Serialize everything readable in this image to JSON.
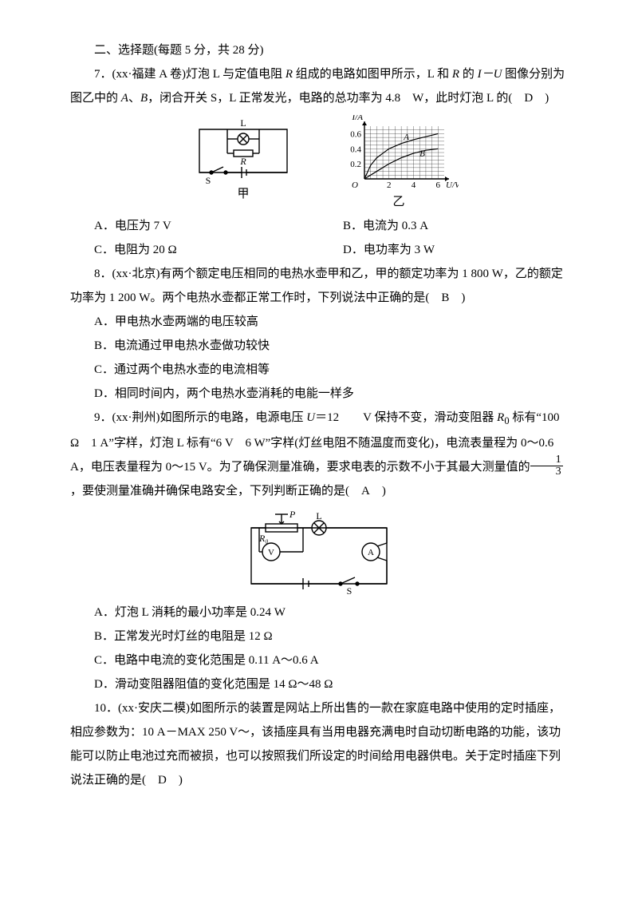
{
  "section_header": "二、选择题(每题 5 分，共 28 分)",
  "q7": {
    "stem_pre": "7．(xx·福建 A 卷)灯泡 L 与定值电阻 ",
    "R": "R",
    "stem_mid1": " 组成的电路如图甲所示，L 和 ",
    "stem_mid2": " 的 ",
    "IU": "I－U",
    "stem_mid3": " 图像分别为图乙中的 ",
    "A": "A",
    "sep": "、",
    "B": "B",
    "stem_tail": "，闭合开关 S，L 正常发光，电路的总功率为 4.8　W，此时灯泡 L 的(　",
    "answer": "D",
    "stem_close": "　)",
    "options": {
      "A": "A．电压为 7 V",
      "B": "B．电流为 0.3 A",
      "C": "C．电阻为 20 Ω",
      "D": "D．电功率为 3 W"
    },
    "circuit_labels": {
      "L": "L",
      "R": "R",
      "S": "S",
      "cap": "甲"
    },
    "chart": {
      "xlabel": "U/V",
      "ylabel": "I/A",
      "xticks": [
        "2",
        "4",
        "6"
      ],
      "yticks": [
        "0.2",
        "0.4",
        "0.6"
      ],
      "curveA_label": "A",
      "curveB_label": "B",
      "cap": "乙",
      "curveA": [
        [
          0,
          0
        ],
        [
          0.5,
          0.18
        ],
        [
          1,
          0.28
        ],
        [
          1.5,
          0.34
        ],
        [
          2,
          0.4
        ],
        [
          3,
          0.47
        ],
        [
          4,
          0.52
        ],
        [
          5,
          0.56
        ],
        [
          6,
          0.6
        ]
      ],
      "curveB": [
        [
          0,
          0
        ],
        [
          1,
          0.1
        ],
        [
          2,
          0.2
        ],
        [
          3,
          0.28
        ],
        [
          4,
          0.34
        ],
        [
          5,
          0.38
        ],
        [
          6,
          0.4
        ]
      ],
      "xlim": [
        0,
        6.5
      ],
      "ylim": [
        0,
        0.7
      ],
      "grid_color": "#000000",
      "stroke_width": 1.2
    }
  },
  "q8": {
    "stem": "8．(xx·北京)有两个额定电压相同的电热水壶甲和乙，甲的额定功率为 1 800 W，乙的额定功率为 1 200 W。两个电热水壶都正常工作时，下列说法中正确的是(　",
    "answer": "B",
    "stem_close": "　)",
    "options": {
      "A": "A．甲电热水壶两端的电压较高",
      "B": "B．电流通过甲电热水壶做功较快",
      "C": "C．通过两个电热水壶的电流相等",
      "D": "D．相同时间内，两个电热水壶消耗的电能一样多"
    }
  },
  "q9": {
    "stem_1": "9．(xx·荆州)如图所示的电路，电源电压 ",
    "U": "U",
    "eq12": "＝12　　V 保持不变，滑动变阻器 ",
    "R0": "R",
    "R0sub": "0",
    "stem_2": " 标有“100 Ω　1 A”字样，灯泡 L 标有“6 V　6 W”字样(灯丝电阻不随温度而变化)，电流表量程为 0～0.6 A，电压表量程为 0～15 V。为了确保测量准确，要求电表的示数不小于其最大测量值的",
    "frac_num": "1",
    "frac_den": "3",
    "stem_3": "，要使测量准确并确保电路安全，下列判断正确的是(　",
    "answer": "A",
    "stem_close": "　)",
    "options": {
      "A": "A．灯泡 L 消耗的最小功率是 0.24 W",
      "B": "B．正常发光时灯丝的电阻是 12 Ω",
      "C": "C．电路中电流的变化范围是 0.11 A～0.6 A",
      "D": "D．滑动变阻器阻值的变化范围是 14 Ω～48 Ω"
    },
    "circuit_labels": {
      "P": "P",
      "R0": "R₀",
      "V": "V",
      "L": "L",
      "A": "A",
      "S": "S"
    }
  },
  "q10": {
    "stem": "10．(xx·安庆二模)如图所示的装置是网站上所出售的一款在家庭电路中使用的定时插座，相应参数为：10 A－MAX 250 V～，该插座具有当用电器充满电时自动切断电路的功能，该功能可以防止电池过充而被损，也可以按照我们所设定的时间给用电器供电。关于定时插座下列说法正确的是(　",
    "answer": "D",
    "stem_close": "　)"
  }
}
